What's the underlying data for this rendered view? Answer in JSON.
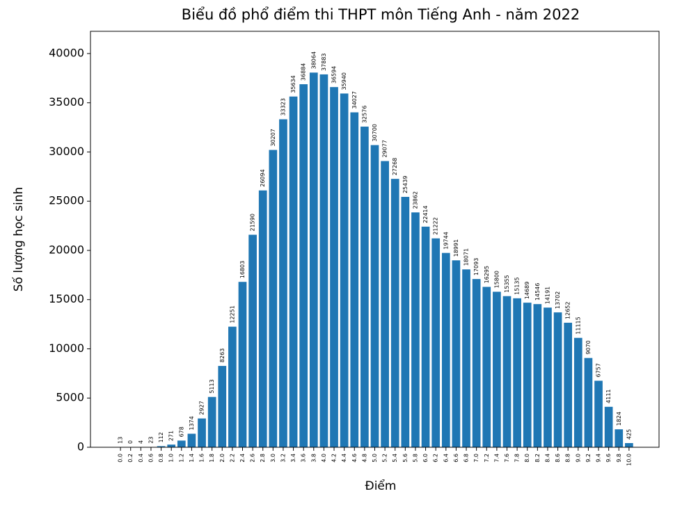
{
  "chart_data": {
    "type": "bar",
    "title": "Biểu đồ phổ điểm thi THPT môn Tiếng Anh - năm 2022",
    "xlabel": "Điểm",
    "ylabel": "Số lượng học sinh",
    "color": "#1f77b4",
    "categories": [
      "0.0",
      "0.2",
      "0.4",
      "0.6",
      "0.8",
      "1.0",
      "1.2",
      "1.4",
      "1.6",
      "1.8",
      "2.0",
      "2.2",
      "2.4",
      "2.6",
      "2.8",
      "3.0",
      "3.2",
      "3.4",
      "3.6",
      "3.8",
      "4.0",
      "4.2",
      "4.4",
      "4.6",
      "4.8",
      "5.0",
      "5.2",
      "5.4",
      "5.6",
      "5.8",
      "6.0",
      "6.2",
      "6.4",
      "6.6",
      "6.8",
      "7.0",
      "7.2",
      "7.4",
      "7.6",
      "7.8",
      "8.0",
      "8.2",
      "8.4",
      "8.6",
      "8.8",
      "9.0",
      "9.2",
      "9.4",
      "9.6",
      "9.8",
      "10.0"
    ],
    "values": [
      13,
      0,
      4,
      23,
      112,
      271,
      678,
      1374,
      2927,
      5113,
      8263,
      12251,
      16803,
      21590,
      26094,
      30207,
      33323,
      35634,
      36884,
      38064,
      37883,
      36594,
      35940,
      34027,
      32576,
      30700,
      29077,
      27268,
      25439,
      23862,
      22414,
      21222,
      19744,
      18991,
      18071,
      17093,
      16295,
      15800,
      15355,
      15135,
      14689,
      14546,
      14191,
      13702,
      12652,
      11115,
      9070,
      6757,
      4111,
      1824,
      425
    ],
    "ylim": [
      0,
      42260
    ],
    "yticks": [
      0,
      5000,
      10000,
      15000,
      20000,
      25000,
      30000,
      35000,
      40000
    ],
    "grid": false
  }
}
